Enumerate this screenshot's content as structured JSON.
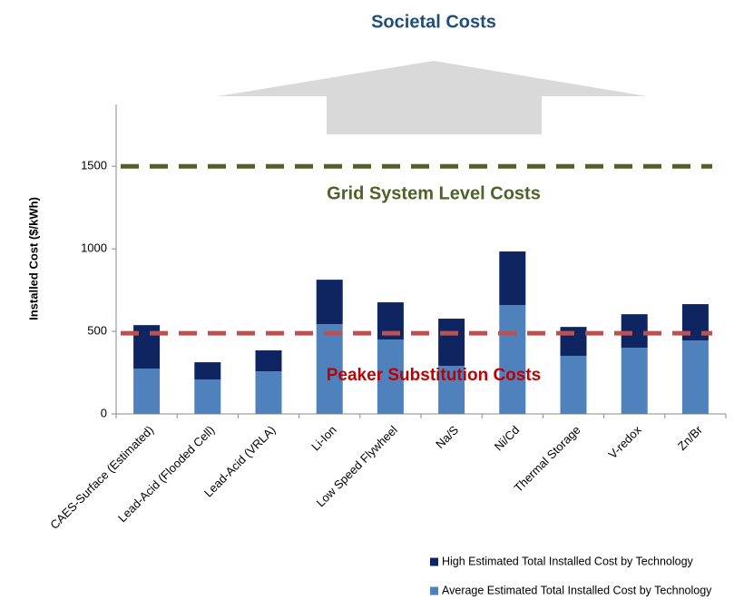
{
  "chart_data": {
    "type": "stacked_bar",
    "title": "Societal Costs",
    "y_label": "Installed Cost ($/kWh)",
    "categories": [
      "CAES-Surface (Estimated)",
      "Lead-Acid (Flooded Cell)",
      "Lead-Acid (VRLA)",
      "Li-Ion",
      "Low Speed Flywheel",
      "Na/S",
      "Ni/Cd",
      "Thermal Storage",
      "V-redox",
      "Zn/Br"
    ],
    "series": [
      {
        "name": "Average Estimated Total Installed Cost by Technology",
        "color": "#4f81bd",
        "values": [
          275,
          209,
          258,
          544,
          451,
          291,
          659,
          352,
          401,
          445
        ]
      },
      {
        "name": "High Estimated Total Installed Cost by Technology",
        "color": "#0e2561",
        "values": [
          263,
          104,
          127,
          269,
          225,
          286,
          325,
          175,
          203,
          220
        ]
      }
    ],
    "reference_lines": [
      {
        "label": "Grid System Level Costs",
        "value": 1500,
        "color": "#4f6228"
      },
      {
        "label": "Peaker Substitution Costs",
        "value": 489,
        "color": "#c0504d"
      }
    ],
    "ylim": [
      0,
      1875
    ],
    "yticks": [
      0,
      500,
      1000,
      1500
    ],
    "grid": false
  }
}
